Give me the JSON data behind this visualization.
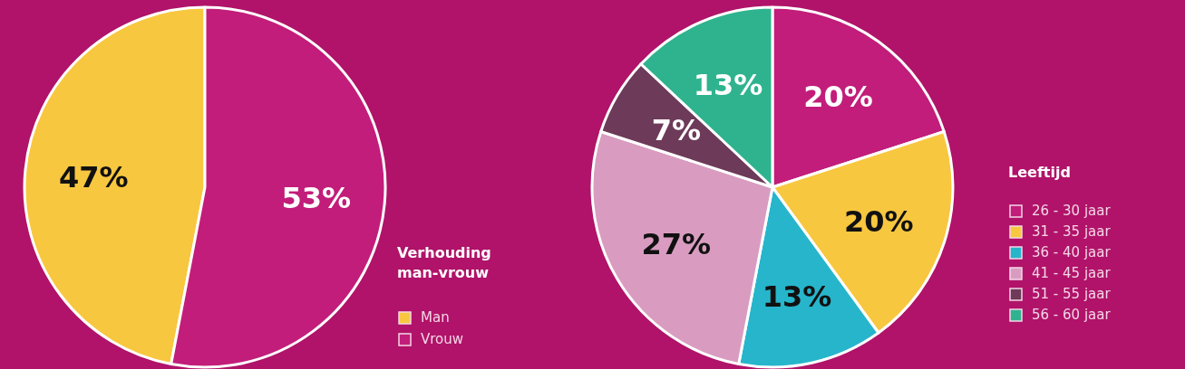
{
  "chart_data": [
    {
      "type": "pie",
      "legend_title": "Verhouding man-vrouw",
      "categories": [
        "Man",
        "Vrouw"
      ],
      "values": [
        47,
        53
      ],
      "value_labels": [
        "47%",
        "53%"
      ],
      "colors": [
        "#f8c740",
        "#c21d7a"
      ],
      "legend": "right"
    },
    {
      "type": "pie",
      "legend_title": "Leeftijd",
      "categories": [
        "26 - 30 jaar",
        "31 - 35 jaar",
        "36 - 40 jaar",
        "41 - 45 jaar",
        "51 - 55 jaar",
        "56 - 60 jaar"
      ],
      "values": [
        20,
        20,
        13,
        27,
        7,
        13
      ],
      "value_labels": [
        "20%",
        "20%",
        "13%",
        "27%",
        "7%",
        "13%"
      ],
      "colors": [
        "#c21d7a",
        "#f8c740",
        "#27b5cb",
        "#d99cc0",
        "#6d3a59",
        "#2fb38f"
      ],
      "legend": "right"
    }
  ]
}
